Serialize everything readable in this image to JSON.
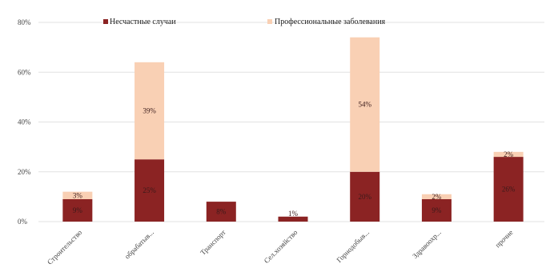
{
  "chart_data": {
    "type": "bar",
    "stacked": true,
    "categories": [
      "Строительство",
      "обрабатыв...",
      "Транспорт",
      "Сел.хозяйство",
      "Горнодобыв...",
      "Здравоохр...",
      "прочие"
    ],
    "series": [
      {
        "name": "Несчастные случаи",
        "color": "#8b2323",
        "values": [
          9,
          25,
          8,
          2,
          20,
          9,
          26
        ],
        "labels": [
          "9%",
          "25%",
          "8%",
          "",
          "20%",
          "9%",
          "26%"
        ]
      },
      {
        "name": "Профессиональные заболевания",
        "color": "#f9d0b4",
        "values": [
          3,
          39,
          0,
          0,
          54,
          2,
          2
        ],
        "labels": [
          "3%",
          "39%",
          "",
          "",
          "54%",
          "2%",
          "2%"
        ]
      }
    ],
    "tiny_label": "1%",
    "yticks": [
      "0%",
      "20%",
      "40%",
      "60%",
      "80%"
    ],
    "ylim": [
      0,
      80
    ],
    "grid": true,
    "legend_position": "top"
  }
}
